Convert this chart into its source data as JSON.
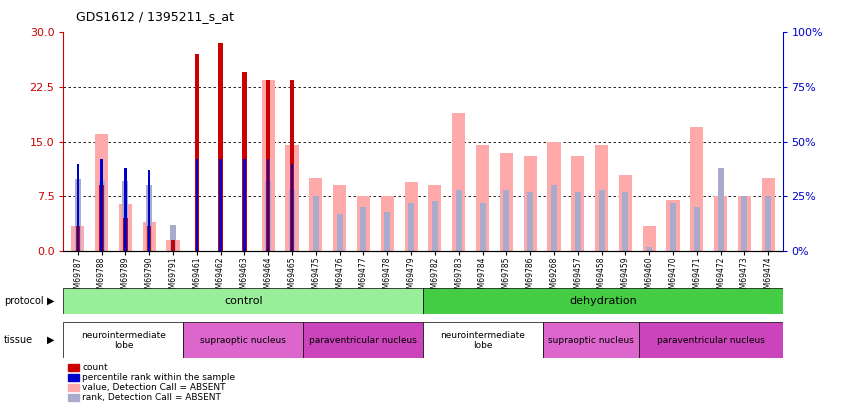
{
  "title": "GDS1612 / 1395211_s_at",
  "samples": [
    "GSM69787",
    "GSM69788",
    "GSM69789",
    "GSM69790",
    "GSM69791",
    "GSM69461",
    "GSM69462",
    "GSM69463",
    "GSM69464",
    "GSM69465",
    "GSM69475",
    "GSM69476",
    "GSM69477",
    "GSM69478",
    "GSM69479",
    "GSM69782",
    "GSM69783",
    "GSM69784",
    "GSM69785",
    "GSM69786",
    "GSM69268",
    "GSM69457",
    "GSM69458",
    "GSM69459",
    "GSM69460",
    "GSM69470",
    "GSM69471",
    "GSM69472",
    "GSM69473",
    "GSM69474"
  ],
  "count_values": [
    3.5,
    9.0,
    4.5,
    3.5,
    1.5,
    27.0,
    28.5,
    24.5,
    23.5,
    23.5,
    0.0,
    0.0,
    0.0,
    0.0,
    0.0,
    0.0,
    0.0,
    0.0,
    0.0,
    0.0,
    0.0,
    0.0,
    0.0,
    0.0,
    0.0,
    0.0,
    0.0,
    0.0,
    0.0,
    0.0
  ],
  "rank_values_pct": [
    40.0,
    42.0,
    38.0,
    37.0,
    0.0,
    42.0,
    42.0,
    42.0,
    42.0,
    40.0,
    0.0,
    0.0,
    0.0,
    0.0,
    0.0,
    0.0,
    0.0,
    0.0,
    0.0,
    0.0,
    0.0,
    0.0,
    0.0,
    0.0,
    0.0,
    0.0,
    0.0,
    0.0,
    0.0,
    0.0
  ],
  "absent_value_values": [
    3.5,
    16.0,
    6.5,
    4.0,
    1.5,
    0.0,
    0.0,
    0.0,
    23.5,
    14.5,
    10.0,
    9.0,
    7.5,
    7.5,
    9.5,
    9.0,
    19.0,
    14.5,
    13.5,
    13.0,
    15.0,
    13.0,
    14.5,
    10.5,
    3.5,
    7.0,
    17.0,
    7.5,
    7.5,
    10.0
  ],
  "absent_rank_pct": [
    33.0,
    32.0,
    32.0,
    30.0,
    12.0,
    0.0,
    0.0,
    0.0,
    32.0,
    28.0,
    25.0,
    17.0,
    20.0,
    18.0,
    22.0,
    23.0,
    28.0,
    22.0,
    28.0,
    27.0,
    30.0,
    27.0,
    28.0,
    27.0,
    2.0,
    22.0,
    20.0,
    38.0,
    25.0,
    25.0
  ],
  "ylim_left": [
    0,
    30
  ],
  "ylim_right": [
    0,
    100
  ],
  "yticks_left": [
    0,
    7.5,
    15,
    22.5,
    30
  ],
  "yticks_right": [
    0,
    25,
    50,
    75,
    100
  ],
  "color_count": "#cc0000",
  "color_rank": "#0000cc",
  "color_absent_value": "#ffaaaa",
  "color_absent_rank": "#aaaacc",
  "protocol_groups": [
    {
      "label": "control",
      "start": 0,
      "end": 14,
      "color": "#99ee99"
    },
    {
      "label": "dehydration",
      "start": 15,
      "end": 29,
      "color": "#44cc44"
    }
  ],
  "tissue_groups": [
    {
      "label": "neurointermediate\nlobe",
      "start": 0,
      "end": 4,
      "color": "#ffffff"
    },
    {
      "label": "supraoptic nucleus",
      "start": 5,
      "end": 9,
      "color": "#dd66cc"
    },
    {
      "label": "paraventricular nucleus",
      "start": 10,
      "end": 14,
      "color": "#cc44bb"
    },
    {
      "label": "neurointermediate\nlobe",
      "start": 15,
      "end": 19,
      "color": "#ffffff"
    },
    {
      "label": "supraoptic nucleus",
      "start": 20,
      "end": 23,
      "color": "#dd66cc"
    },
    {
      "label": "paraventricular nucleus",
      "start": 24,
      "end": 29,
      "color": "#cc44bb"
    }
  ],
  "legend_items": [
    {
      "label": "count",
      "color": "#cc0000"
    },
    {
      "label": "percentile rank within the sample",
      "color": "#0000cc"
    },
    {
      "label": "value, Detection Call = ABSENT",
      "color": "#ffaaaa"
    },
    {
      "label": "rank, Detection Call = ABSENT",
      "color": "#aaaacc"
    }
  ]
}
